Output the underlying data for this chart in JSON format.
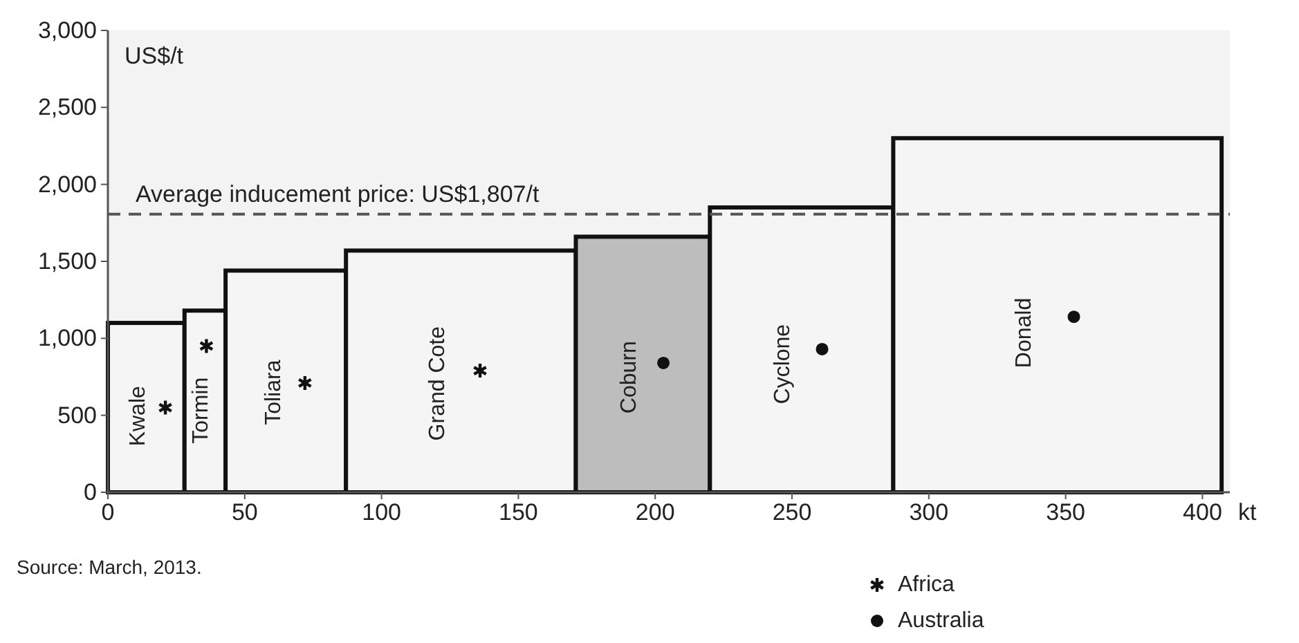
{
  "chart_data": {
    "type": "histogram",
    "ylabel": "US$/t",
    "xlabel": "kt",
    "bins": [
      0,
      28,
      43,
      87,
      171,
      220,
      287,
      407
    ],
    "categories": [
      "Kwale",
      "Tormin",
      "Toliara",
      "Grand Cote",
      "Coburn",
      "Cyclone",
      "Donald"
    ],
    "values": [
      1100,
      1180,
      1440,
      1570,
      1660,
      1850,
      2300
    ],
    "colors": [
      "#f5f5f5",
      "#f5f5f5",
      "#f5f5f5",
      "#f5f5f5",
      "#bdbdbd",
      "#f5f5f5",
      "#f5f5f5"
    ],
    "series": [
      {
        "name": "Africa",
        "type": "scatter",
        "marker": "cross",
        "color": "#111111",
        "x": [
          21,
          36,
          72,
          136
        ],
        "values": [
          550,
          950,
          710,
          790
        ]
      },
      {
        "name": "Australia",
        "type": "scatter",
        "marker": "circle",
        "color": "#111111",
        "x": [
          203,
          261,
          353
        ],
        "values": [
          840,
          930,
          1140
        ]
      }
    ],
    "xlim": [
      0,
      410
    ],
    "xticks": [
      0,
      50,
      100,
      150,
      200,
      250,
      300,
      350,
      400
    ],
    "ylim": [
      0,
      3000
    ],
    "yticks": [
      {
        "value": 0,
        "label": "0"
      },
      {
        "value": 500,
        "label": "500"
      },
      {
        "value": 1000,
        "label": "1,000"
      },
      {
        "value": 1500,
        "label": "1,500"
      },
      {
        "value": 2000,
        "label": "2,000"
      },
      {
        "value": 2500,
        "label": "2,500"
      },
      {
        "value": 3000,
        "label": "3,000"
      }
    ],
    "ref_lines": [
      {
        "axis": "y",
        "value": 1807,
        "label": "Average inducement price: US$1,807/t",
        "color": "#555555",
        "line_style": "dashed"
      }
    ],
    "legend": "bottom right",
    "annotations": [
      "Source: March, 2013."
    ]
  }
}
